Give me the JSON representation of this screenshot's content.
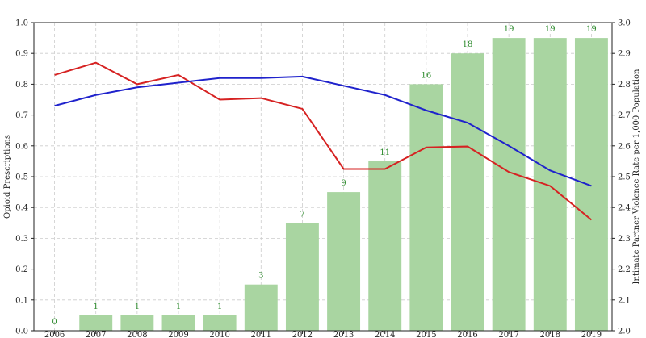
{
  "chart_data": {
    "type": "bar_line_dual",
    "y_label": "Opioid Prescriptions",
    "y2_label": "Intimate Partner Violence Rate per 1,000 Population",
    "categories": [
      "2006",
      "2007",
      "2008",
      "2009",
      "2010",
      "2011",
      "2012",
      "2013",
      "2014",
      "2015",
      "2016",
      "2017",
      "2018",
      "2019"
    ],
    "ylim": [
      0,
      1
    ],
    "yticks": [
      {
        "value": 0,
        "label": "0.0"
      },
      0.1,
      0.2,
      0.3,
      0.4,
      0.5,
      0.6,
      0.7,
      0.8,
      0.9,
      {
        "value": 1,
        "label": "1.0"
      }
    ],
    "y2lim": [
      2,
      3
    ],
    "y2ticks": [
      {
        "value": 2,
        "label": "2.0"
      },
      2.1,
      2.2,
      2.3,
      2.4,
      2.5,
      2.6,
      2.7,
      2.8,
      2.9,
      {
        "value": 3,
        "label": "3.0"
      }
    ],
    "y3lim": [
      0,
      20
    ],
    "grid": true,
    "series": [
      {
        "kind": "bar",
        "axis": "y3",
        "color": "#a9d5a1",
        "label_color": "#2e8b2e",
        "values": [
          0,
          1,
          1,
          1,
          1,
          3,
          7,
          9,
          11,
          16,
          18,
          19,
          19,
          19
        ]
      },
      {
        "kind": "line",
        "axis": "y",
        "color": "#d62222",
        "values": [
          0.83,
          0.87,
          0.8,
          0.83,
          0.75,
          0.755,
          0.72,
          0.525,
          0.525,
          0.595,
          0.598,
          0.515,
          0.47,
          0.36
        ]
      },
      {
        "kind": "line",
        "axis": "y2",
        "color": "#1f22cc",
        "values": [
          2.73,
          2.765,
          2.79,
          2.805,
          2.82,
          2.82,
          2.825,
          2.795,
          2.765,
          2.715,
          2.675,
          2.6,
          2.52,
          2.47
        ]
      }
    ]
  }
}
